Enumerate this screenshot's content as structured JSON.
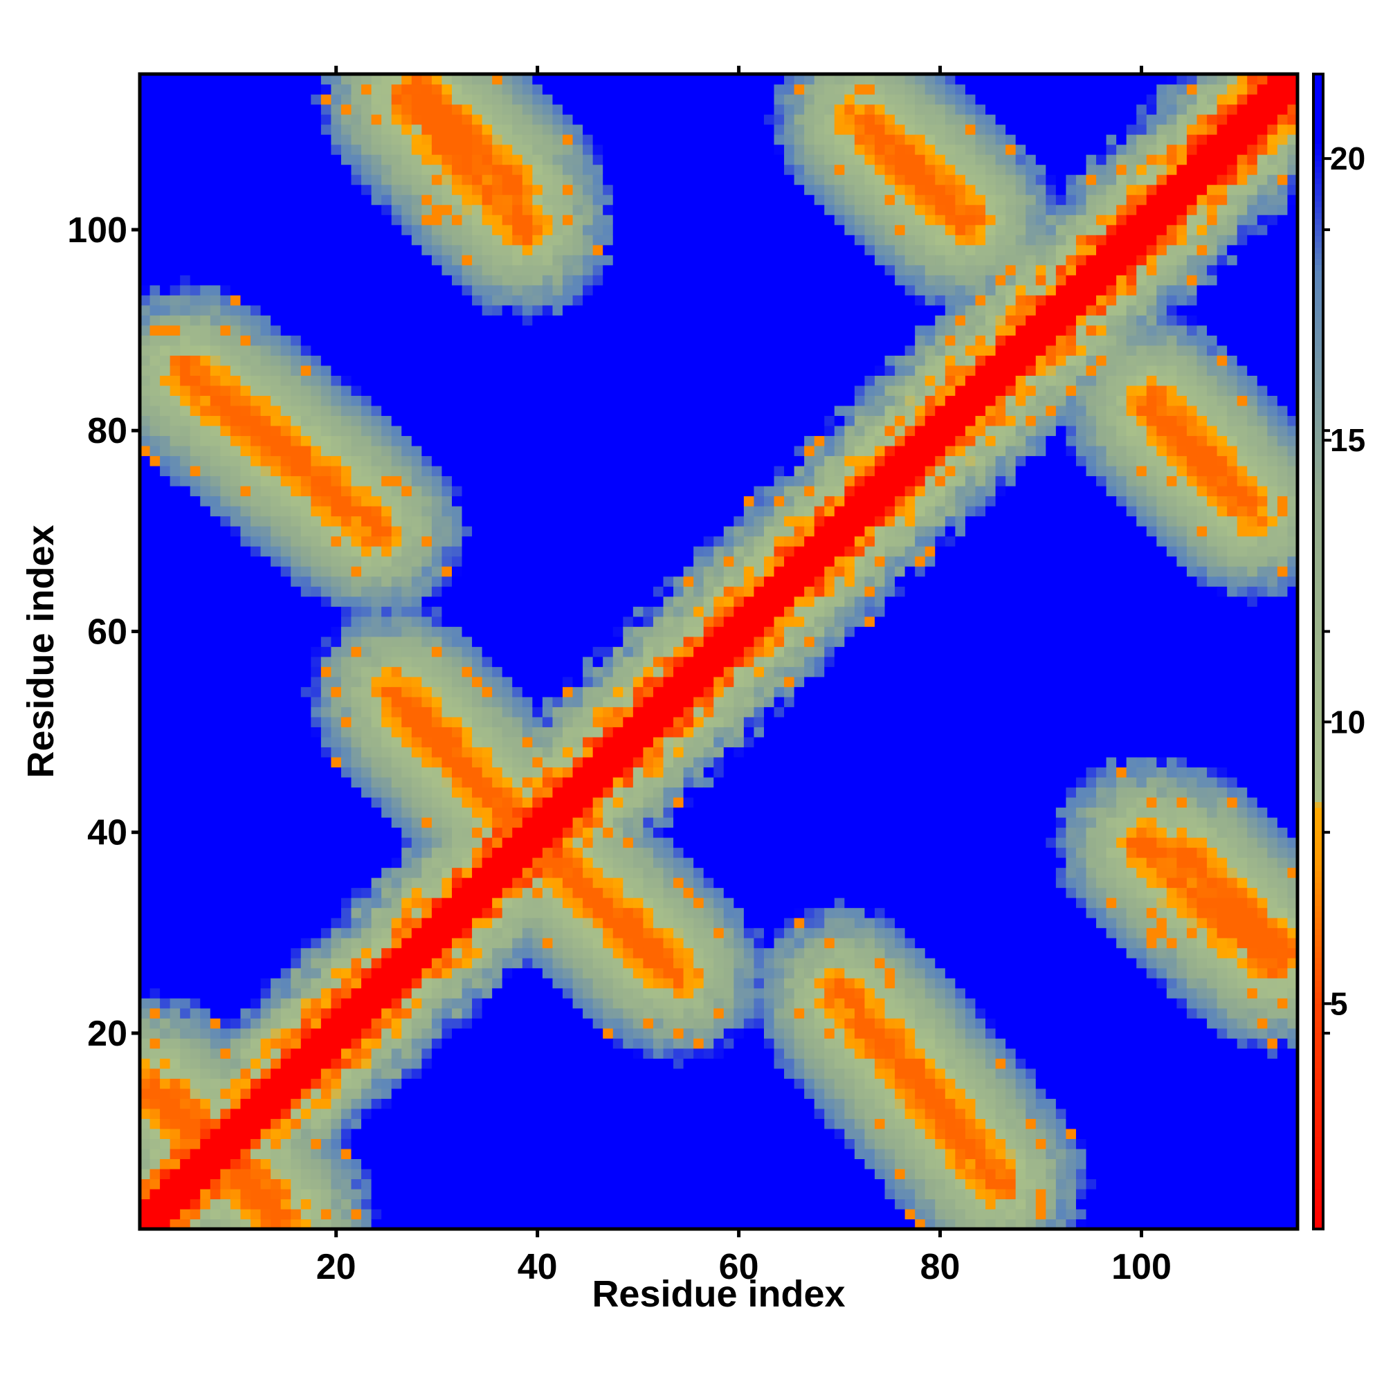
{
  "chart_data": {
    "type": "heatmap",
    "title": "",
    "xlabel": "Residue index",
    "ylabel": "Residue index",
    "xlim": [
      1,
      115
    ],
    "ylim": [
      1,
      115
    ],
    "x_ticks": [
      20,
      40,
      60,
      80,
      100
    ],
    "y_ticks": [
      20,
      40,
      60,
      80,
      100
    ],
    "x_tick_labels": [
      "20",
      "40",
      "60",
      "80",
      "100"
    ],
    "y_tick_labels": [
      "20",
      "40",
      "60",
      "80",
      "100"
    ],
    "colorbar": {
      "ticks": [
        5,
        10,
        15,
        20
      ],
      "tick_labels": [
        "5",
        "10",
        "15",
        "20"
      ],
      "range": [
        1,
        21.5
      ],
      "placement": "right",
      "stops": [
        {
          "value": 1,
          "color": "#ff0000"
        },
        {
          "value": 5,
          "color": "#ff4400"
        },
        {
          "value": 7.5,
          "color": "#ff9900"
        },
        {
          "value": 8.5,
          "color": "#ffaa00"
        },
        {
          "value": 8.6,
          "color": "#a8bf8a"
        },
        {
          "value": 14,
          "color": "#93ac8e"
        },
        {
          "value": 18,
          "color": "#5c86bb"
        },
        {
          "value": 20.3,
          "color": "#0000ff"
        },
        {
          "value": 21.5,
          "color": "#0000ff"
        }
      ]
    },
    "matrix_size": 115,
    "background_value": 21.5,
    "diagonal_band": {
      "halfwidth": 2.2,
      "value": 1
    },
    "features": [
      {
        "kind": "helix-contact",
        "center": [
          40,
          40
        ],
        "value": 4
      },
      {
        "kind": "strand-pair-antiparallel",
        "from": [
          27,
          52
        ],
        "to": [
          38,
          41
        ],
        "value": 6
      },
      {
        "kind": "strand-pair-antiparallel",
        "from": [
          42,
          37
        ],
        "to": [
          54,
          26
        ],
        "value": 6
      },
      {
        "kind": "strand-pair-antiparallel",
        "from": [
          73,
          21
        ],
        "to": [
          86,
          5
        ],
        "value": 6
      },
      {
        "kind": "strand-pair-antiparallel",
        "from": [
          10,
          82
        ],
        "to": [
          24,
          70
        ],
        "value": 6
      },
      {
        "kind": "strand-pair-antiparallel",
        "from": [
          28,
          114
        ],
        "to": [
          38,
          104
        ],
        "value": 6
      },
      {
        "kind": "strand-pair-antiparallel",
        "from": [
          73,
          110
        ],
        "to": [
          83,
          101
        ],
        "value": 6
      },
      {
        "kind": "strand-pair-antiparallel",
        "from": [
          100,
          39
        ],
        "to": [
          113,
          27
        ],
        "value": 6
      },
      {
        "kind": "strand-pair-antiparallel",
        "from": [
          101,
          82
        ],
        "to": [
          111,
          72
        ],
        "value": 6
      },
      {
        "kind": "strand-pair-antiparallel",
        "from": [
          2,
          15
        ],
        "to": [
          14,
          2
        ],
        "value": 6
      },
      {
        "kind": "local-contact",
        "center": [
          86,
          86
        ],
        "value": 7
      },
      {
        "kind": "local-contact",
        "center": [
          63,
          63
        ],
        "value": 7
      }
    ]
  }
}
